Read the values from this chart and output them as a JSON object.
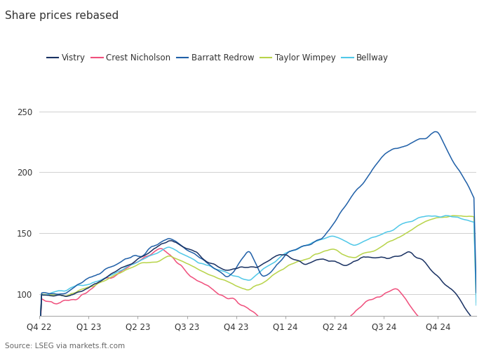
{
  "title": "Share prices rebased",
  "source": "Source: LSEG via markets.ft.com",
  "vistry_color": "#1a3263",
  "crest_color": "#f0507d",
  "barratt_color": "#2060a8",
  "taylor_color": "#b8d44a",
  "bellway_color": "#50c8e8",
  "ylim": [
    82,
    278
  ],
  "yticks": [
    100,
    150,
    200,
    250
  ],
  "xtick_labels": [
    "Q4 22",
    "Q1 23",
    "Q2 23",
    "Q3 23",
    "Q4 23",
    "Q1 24",
    "Q2 24",
    "Q3 24",
    "Q4 24"
  ],
  "background_color": "#ffffff",
  "grid_color": "#d0d0d0",
  "title_fontsize": 11,
  "tick_fontsize": 8.5,
  "legend_fontsize": 8.5
}
